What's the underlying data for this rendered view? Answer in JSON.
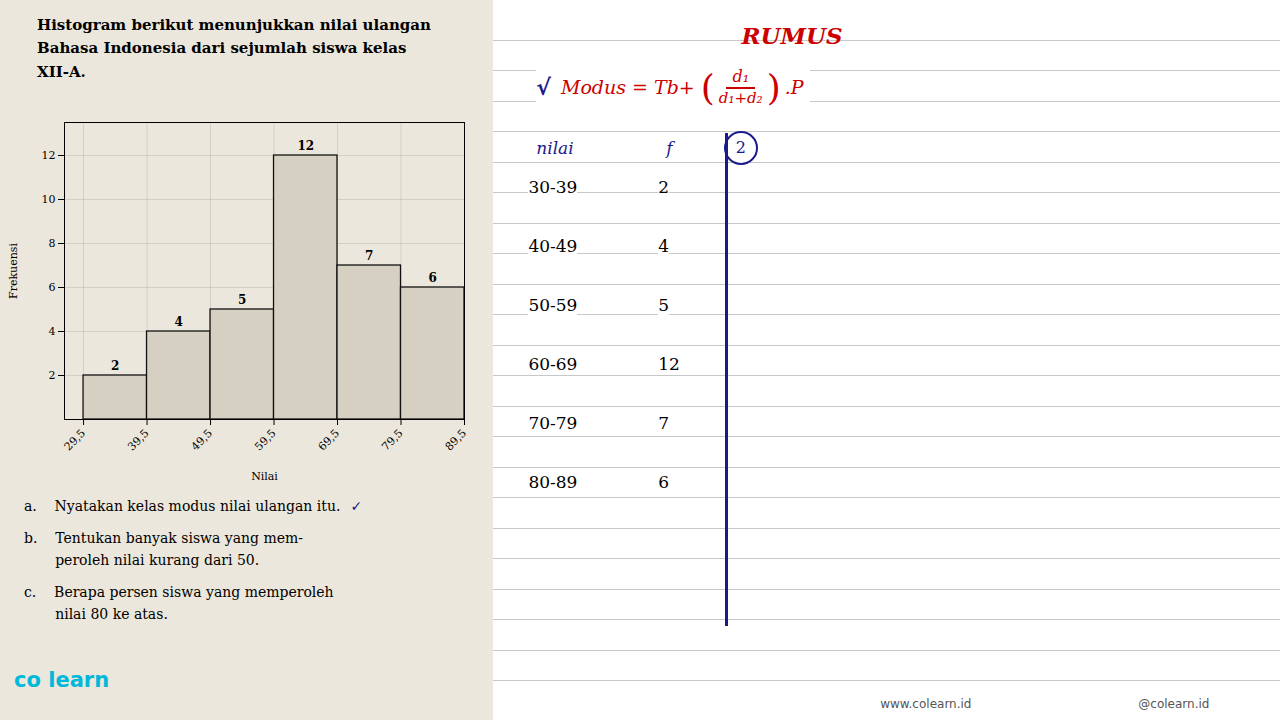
{
  "chart_data": {
    "type": "histogram",
    "title": "Histogram berikut menunjukkan nilai ulangan\nBahasa Indonesia dari sejumlah siswa kelas\nXII-A.",
    "bins": [
      29.5,
      39.5,
      49.5,
      59.5,
      69.5,
      79.5,
      89.5
    ],
    "values": [
      2,
      4,
      5,
      12,
      7,
      6
    ],
    "color": "#d5d0c2",
    "xlabel": "Nilai",
    "ylabel": "Frekuensi",
    "xlim": [
      26.5,
      89.5
    ],
    "xticks": [
      {
        "value": 29.5,
        "label": "29,5"
      },
      {
        "value": 39.5,
        "label": "39,5"
      },
      {
        "value": 49.5,
        "label": "49,5"
      },
      {
        "value": 59.5,
        "label": "59,5"
      },
      {
        "value": 69.5,
        "label": "69,5"
      },
      {
        "value": 79.5,
        "label": "79,5"
      },
      {
        "value": 89.5,
        "label": "89,5"
      }
    ],
    "ylim": [
      0,
      13.5
    ],
    "yticks": [
      2,
      4,
      6,
      8,
      10,
      12
    ],
    "grid": true,
    "data_labels": true,
    "annotations": [
      "RUMUS",
      "√",
      "Modus = Tb+",
      "(",
      "d₁",
      "d₁+d₂",
      ")",
      ".P",
      "nilai",
      "f",
      "2",
      "30-39",
      "40-49",
      "50-59",
      "60-69",
      "70-79",
      "80-89",
      "2",
      "4",
      "5",
      "12",
      "7",
      "6",
      "a.    Nyatakan kelas modus nilai ulangan itu.",
      "✓",
      "b.    Tentukan banyak siswa yang mem-",
      "       peroleh nilai kurang dari 50.",
      "c.    Berapa persen siswa yang memperoleh",
      "       nilai 80 ke atas.",
      "www.colearn.id",
      "@colearn.id",
      "co learn"
    ]
  }
}
